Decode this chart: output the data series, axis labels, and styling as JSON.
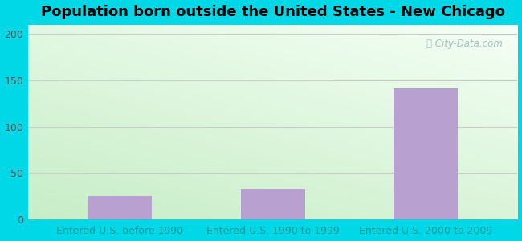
{
  "title": "Population born outside the United States - New Chicago",
  "categories": [
    "Entered U.S. before 1990",
    "Entered U.S. 1990 to 1999",
    "Entered U.S. 2000 to 2009"
  ],
  "values": [
    25,
    33,
    141
  ],
  "bar_color": "#b8a0d0",
  "ylim": [
    0,
    210
  ],
  "yticks": [
    0,
    50,
    100,
    150,
    200
  ],
  "bg_color_outer": "#00d8e8",
  "tick_label_color": "#009999",
  "ytick_label_color": "#555555",
  "title_color": "#000000",
  "grid_color": "#cccccc",
  "watermark": "City-Data.com",
  "watermark_color": "#99bbbb",
  "bar_width": 0.42
}
